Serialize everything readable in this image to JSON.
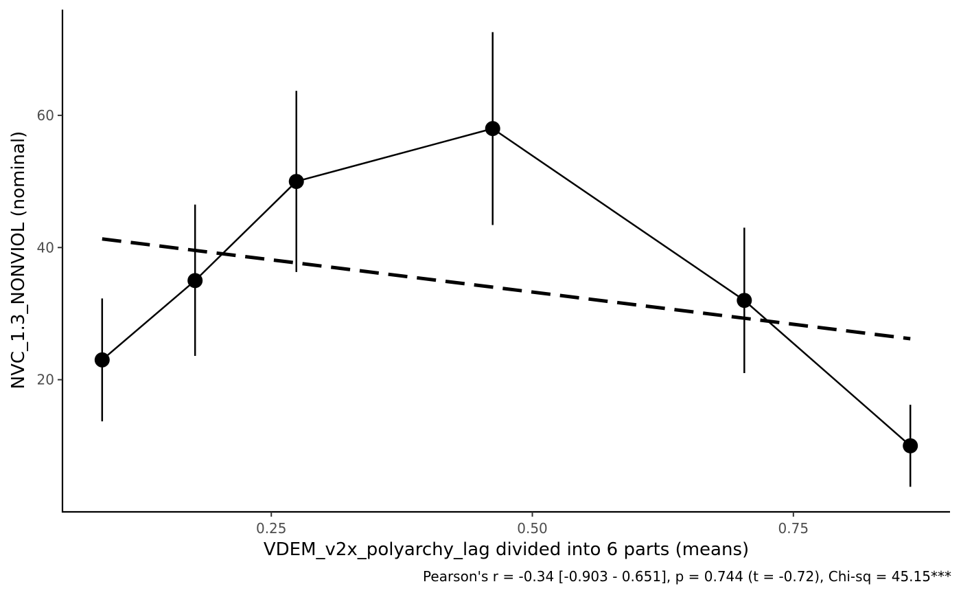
{
  "chart_data": {
    "type": "line",
    "xlabel": "VDEM_v2x_polyarchy_lag divided into 6 parts (means)",
    "ylabel": "NVC_1.3_NONVIOL (nominal)",
    "caption": "Pearson's r = -0.34 [-0.903 - 0.651], p = 0.744 (t = -0.72), Chi-sq = 45.15***",
    "xlim": [
      0.05,
      0.9
    ],
    "ylim": [
      0,
      76
    ],
    "x_ticks": [
      0.25,
      0.5,
      0.75
    ],
    "x_tick_labels": [
      "0.25",
      "0.50",
      "0.75"
    ],
    "y_ticks": [
      20,
      40,
      60
    ],
    "y_tick_labels": [
      "20",
      "40",
      "60"
    ],
    "grid": false,
    "series": [
      {
        "style": "solid-with-points",
        "color": "#000000",
        "points": [
          {
            "x": 0.088,
            "y": 23,
            "lower": 13.7,
            "upper": 32.3
          },
          {
            "x": 0.177,
            "y": 35,
            "lower": 23.6,
            "upper": 46.5
          },
          {
            "x": 0.274,
            "y": 50,
            "lower": 36.3,
            "upper": 63.7
          },
          {
            "x": 0.462,
            "y": 58,
            "lower": 43.4,
            "upper": 72.6
          },
          {
            "x": 0.703,
            "y": 32,
            "lower": 21.0,
            "upper": 43.0
          },
          {
            "x": 0.862,
            "y": 10,
            "lower": 3.8,
            "upper": 16.2
          }
        ]
      }
    ],
    "trend_line": {
      "style": "dashed",
      "color": "#000000",
      "x": [
        0.088,
        0.862
      ],
      "y": [
        41.3,
        26.2
      ]
    }
  }
}
